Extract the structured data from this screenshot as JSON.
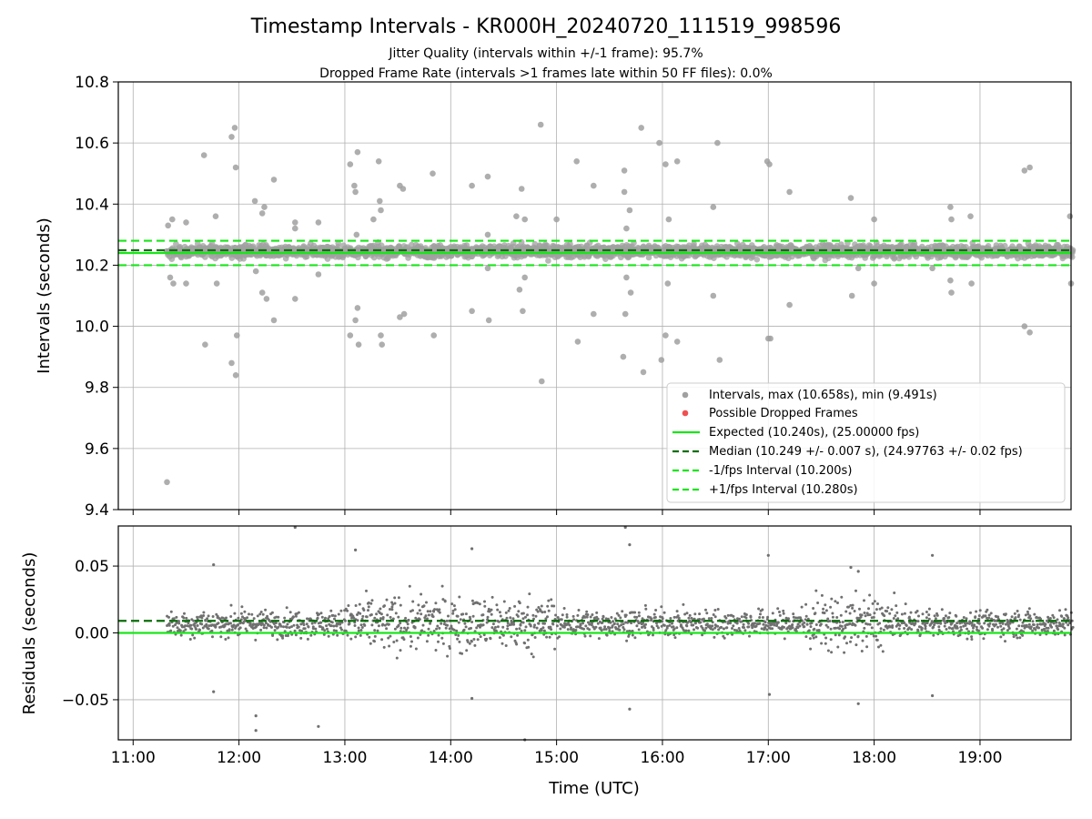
{
  "chart_data": [
    {
      "type": "scatter",
      "title": "Timestamp Intervals - KR000H_20240720_111519_998596",
      "subtitle_lines": [
        "Jitter Quality (intervals within +/-1 frame): 95.7%",
        "Dropped Frame Rate (intervals >1 frames late within 50 FF files): 0.0%"
      ],
      "ylabel": "Intervals (seconds)",
      "ylim": [
        9.4,
        10.8
      ],
      "yticks": [
        9.4,
        9.6,
        9.8,
        10.0,
        10.2,
        10.4,
        10.6,
        10.8
      ],
      "ytick_labels": [
        "9.4",
        "9.6",
        "9.8",
        "10.0",
        "10.2",
        "10.4",
        "10.6",
        "10.8"
      ],
      "grid": true,
      "legend_position": "lower-right",
      "series": [
        {
          "name": "Intervals, max (10.658s), min (9.491s)",
          "kind": "points",
          "color": "#a0a0a0",
          "band": {
            "center": 10.246,
            "spread": 0.014,
            "t_start": 11.32,
            "t_end": 19.88
          },
          "outliers": [
            [
              11.32,
              9.49
            ],
            [
              11.33,
              10.33
            ],
            [
              11.35,
              10.16
            ],
            [
              11.37,
              10.35
            ],
            [
              11.38,
              10.14
            ],
            [
              11.5,
              10.34
            ],
            [
              11.5,
              10.14
            ],
            [
              11.67,
              10.56
            ],
            [
              11.68,
              9.94
            ],
            [
              11.78,
              10.36
            ],
            [
              11.79,
              10.14
            ],
            [
              11.93,
              10.62
            ],
            [
              11.93,
              9.88
            ],
            [
              11.96,
              10.65
            ],
            [
              11.97,
              10.52
            ],
            [
              11.97,
              9.84
            ],
            [
              11.98,
              9.97
            ],
            [
              12.15,
              10.41
            ],
            [
              12.16,
              10.18
            ],
            [
              12.22,
              10.37
            ],
            [
              12.24,
              10.39
            ],
            [
              12.22,
              10.11
            ],
            [
              12.26,
              10.09
            ],
            [
              12.33,
              10.48
            ],
            [
              12.33,
              10.02
            ],
            [
              12.53,
              10.34
            ],
            [
              12.53,
              10.32
            ],
            [
              12.53,
              10.09
            ],
            [
              12.75,
              10.34
            ],
            [
              12.75,
              10.17
            ],
            [
              13.05,
              10.53
            ],
            [
              13.05,
              9.97
            ],
            [
              13.09,
              10.46
            ],
            [
              13.1,
              10.44
            ],
            [
              13.12,
              10.57
            ],
            [
              13.11,
              10.3
            ],
            [
              13.12,
              10.06
            ],
            [
              13.1,
              10.02
            ],
            [
              13.13,
              9.94
            ],
            [
              13.27,
              10.35
            ],
            [
              13.32,
              10.54
            ],
            [
              13.33,
              10.41
            ],
            [
              13.34,
              10.38
            ],
            [
              13.34,
              9.97
            ],
            [
              13.35,
              9.94
            ],
            [
              13.52,
              10.46
            ],
            [
              13.55,
              10.45
            ],
            [
              13.52,
              10.03
            ],
            [
              13.56,
              10.04
            ],
            [
              13.83,
              10.5
            ],
            [
              13.84,
              9.97
            ],
            [
              14.2,
              10.46
            ],
            [
              14.2,
              10.05
            ],
            [
              14.35,
              10.49
            ],
            [
              14.35,
              10.3
            ],
            [
              14.35,
              10.19
            ],
            [
              14.36,
              10.02
            ],
            [
              14.62,
              10.36
            ],
            [
              14.67,
              10.45
            ],
            [
              14.7,
              10.35
            ],
            [
              14.65,
              10.12
            ],
            [
              14.7,
              10.16
            ],
            [
              14.68,
              10.05
            ],
            [
              14.85,
              10.66
            ],
            [
              14.86,
              9.82
            ],
            [
              15.0,
              10.35
            ],
            [
              15.19,
              10.54
            ],
            [
              15.2,
              9.95
            ],
            [
              15.35,
              10.46
            ],
            [
              15.35,
              10.04
            ],
            [
              15.64,
              10.51
            ],
            [
              15.64,
              10.44
            ],
            [
              15.66,
              10.32
            ],
            [
              15.69,
              10.38
            ],
            [
              15.66,
              10.16
            ],
            [
              15.7,
              10.11
            ],
            [
              15.65,
              10.04
            ],
            [
              15.63,
              9.9
            ],
            [
              15.8,
              10.65
            ],
            [
              15.82,
              9.85
            ],
            [
              15.97,
              10.6
            ],
            [
              15.99,
              9.89
            ],
            [
              16.03,
              10.53
            ],
            [
              16.06,
              10.35
            ],
            [
              16.05,
              10.14
            ],
            [
              16.03,
              9.97
            ],
            [
              16.14,
              10.54
            ],
            [
              16.14,
              9.95
            ],
            [
              16.48,
              10.39
            ],
            [
              16.48,
              10.1
            ],
            [
              16.52,
              10.6
            ],
            [
              16.54,
              9.89
            ],
            [
              16.99,
              10.54
            ],
            [
              17.01,
              10.53
            ],
            [
              17.0,
              9.96
            ],
            [
              17.02,
              9.96
            ],
            [
              17.2,
              10.44
            ],
            [
              17.2,
              10.07
            ],
            [
              17.78,
              10.42
            ],
            [
              17.79,
              10.1
            ],
            [
              17.85,
              10.19
            ],
            [
              18.0,
              10.35
            ],
            [
              18.0,
              10.14
            ],
            [
              18.55,
              10.19
            ],
            [
              18.72,
              10.39
            ],
            [
              18.73,
              10.35
            ],
            [
              18.72,
              10.15
            ],
            [
              18.73,
              10.11
            ],
            [
              18.91,
              10.36
            ],
            [
              18.92,
              10.14
            ],
            [
              19.42,
              10.51
            ],
            [
              19.47,
              10.52
            ],
            [
              19.42,
              10.0
            ],
            [
              19.47,
              9.98
            ],
            [
              19.85,
              10.36
            ],
            [
              19.86,
              10.14
            ]
          ]
        },
        {
          "name": "Possible Dropped Frames",
          "kind": "points",
          "color": "#f05050",
          "values": []
        },
        {
          "name": "Expected (10.240s), (25.00000 fps)",
          "kind": "hline",
          "value": 10.24,
          "style": "solid",
          "color": "#19e619"
        },
        {
          "name": "Median (10.249 +/- 0.007 s), (24.97763 +/- 0.02 fps)",
          "kind": "hline",
          "value": 10.249,
          "style": "dashed",
          "color": "#0a6e0a"
        },
        {
          "name": "-1/fps Interval (10.200s)",
          "kind": "hline",
          "value": 10.2,
          "style": "dashed",
          "color": "#19e619"
        },
        {
          "name": "+1/fps Interval (10.280s)",
          "kind": "hline",
          "value": 10.28,
          "style": "dashed",
          "color": "#19e619"
        }
      ]
    },
    {
      "type": "scatter",
      "ylabel": "Residuals (seconds)",
      "xlabel": "Time (UTC)",
      "ylim": [
        -0.08,
        0.08
      ],
      "yticks": [
        -0.05,
        0.0,
        0.05
      ],
      "ytick_labels": [
        "−0.05",
        "0.00",
        "0.05"
      ],
      "xlim": [
        10.86,
        19.86
      ],
      "xticks": [
        11,
        12,
        13,
        14,
        15,
        16,
        17,
        18,
        19
      ],
      "xtick_labels": [
        "11:00",
        "12:00",
        "13:00",
        "14:00",
        "15:00",
        "16:00",
        "17:00",
        "18:00",
        "19:00"
      ],
      "grid": true,
      "series": [
        {
          "name": "Residuals",
          "kind": "points",
          "color": "#707070",
          "band": {
            "center": 0.007,
            "spread": 0.007,
            "wide_spread": 0.014,
            "t_start": 11.32,
            "t_end": 19.88
          },
          "outliers": [
            [
              12.53,
              0.079
            ],
            [
              15.65,
              0.079
            ],
            [
              15.69,
              0.066
            ],
            [
              14.2,
              0.063
            ],
            [
              13.1,
              0.062
            ],
            [
              18.55,
              0.058
            ],
            [
              17.0,
              0.058
            ],
            [
              11.76,
              0.051
            ],
            [
              17.78,
              0.049
            ],
            [
              17.85,
              0.046
            ],
            [
              11.76,
              -0.044
            ],
            [
              17.01,
              -0.046
            ],
            [
              18.55,
              -0.047
            ],
            [
              14.2,
              -0.049
            ],
            [
              17.85,
              -0.053
            ],
            [
              15.69,
              -0.057
            ],
            [
              12.16,
              -0.062
            ],
            [
              12.75,
              -0.07
            ],
            [
              12.16,
              -0.073
            ],
            [
              14.7,
              -0.08
            ]
          ]
        },
        {
          "name": "Expected",
          "kind": "hline",
          "value": 0.0,
          "style": "solid",
          "color": "#19e619"
        },
        {
          "name": "Median",
          "kind": "hline",
          "value": 0.009,
          "style": "dashed",
          "color": "#0a6e0a"
        }
      ]
    }
  ]
}
